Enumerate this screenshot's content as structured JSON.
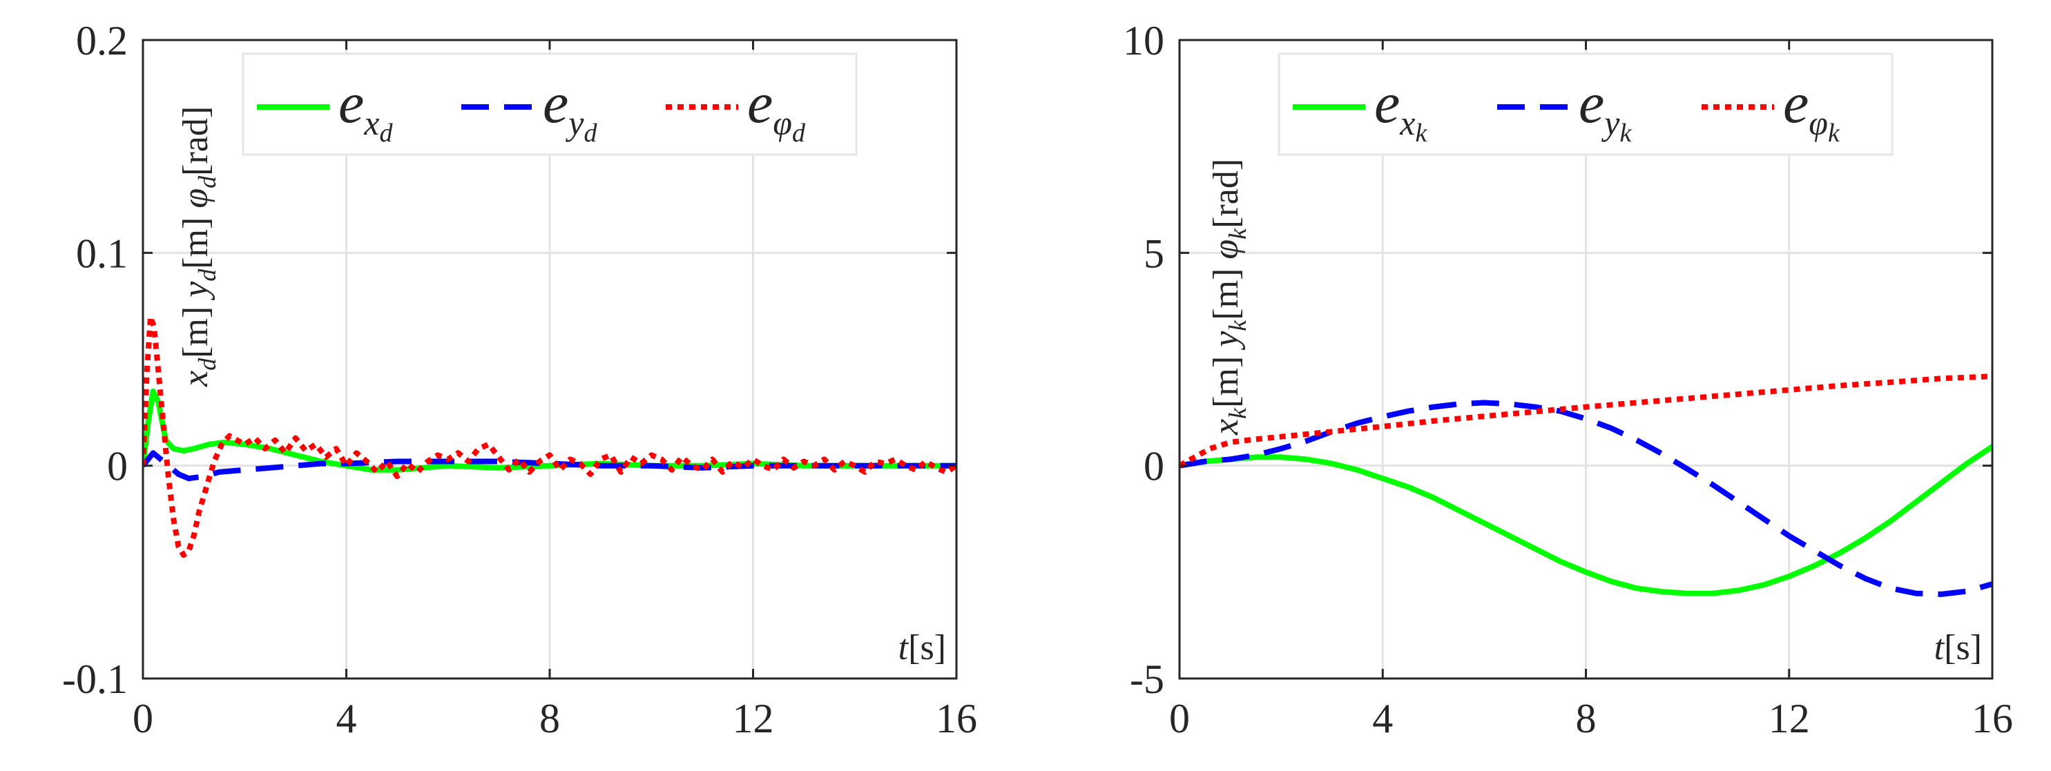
{
  "chart_data": [
    {
      "type": "line",
      "panel": "left",
      "x_tick_labels": [
        "0",
        "4",
        "8",
        "12",
        "16"
      ],
      "y_tick_labels": [
        "-0.1",
        "0",
        "0.1",
        "0.2"
      ],
      "xlim": [
        0,
        16
      ],
      "ylim": [
        -0.1,
        0.2
      ],
      "xticks": [
        0,
        4,
        8,
        12,
        16
      ],
      "yticks": [
        -0.1,
        0,
        0.1,
        0.2
      ],
      "grid": true,
      "legend_position": "top",
      "xlabel": {
        "var": "t",
        "unit": "[s]"
      },
      "ylabel": {
        "parts": [
          {
            "var": "x",
            "sub": "d",
            "unit": "[m]"
          },
          {
            "var": "y",
            "sub": "d",
            "unit": "[m]"
          },
          {
            "var": "φ",
            "sub": "d",
            "unit": "[rad]"
          }
        ]
      },
      "series": [
        {
          "name": "e_xd",
          "legend": {
            "base": "e",
            "sub": "x",
            "subsub": "d"
          },
          "color": "#00ff00",
          "style": "solid",
          "x": [
            0,
            0.1,
            0.2,
            0.3,
            0.45,
            0.6,
            0.8,
            1.0,
            1.3,
            1.6,
            2.0,
            2.5,
            3.0,
            3.5,
            4.0,
            4.5,
            5.0,
            5.5,
            6.0,
            7.0,
            8.0,
            9.0,
            10.0,
            11.0,
            12.0,
            13.0,
            14.0,
            15.0,
            16.0
          ],
          "y": [
            0,
            0.02,
            0.035,
            0.03,
            0.012,
            0.008,
            0.007,
            0.008,
            0.01,
            0.011,
            0.01,
            0.008,
            0.005,
            0.002,
            0,
            -0.002,
            -0.002,
            -0.001,
            0,
            -0.001,
            0,
            0.001,
            0,
            0,
            0.001,
            0,
            0,
            0,
            0
          ]
        },
        {
          "name": "e_yd",
          "legend": {
            "base": "e",
            "sub": "y",
            "subsub": "d"
          },
          "color": "#0000ff",
          "style": "dashed",
          "x": [
            0,
            0.2,
            0.35,
            0.5,
            0.7,
            0.9,
            1.2,
            1.5,
            2.0,
            2.5,
            3.0,
            3.5,
            4.0,
            5.0,
            6.0,
            7.0,
            8.0,
            9.0,
            10.0,
            11.0,
            12.0,
            13.0,
            14.0,
            15.0,
            16.0
          ],
          "y": [
            0,
            0.006,
            0.003,
            0.0,
            -0.004,
            -0.006,
            -0.005,
            -0.003,
            -0.002,
            -0.001,
            0,
            0.001,
            0.001,
            0.002,
            0.002,
            0.002,
            0.001,
            0,
            0,
            -0.001,
            0,
            0,
            0,
            0,
            0
          ]
        },
        {
          "name": "e_φd",
          "legend": {
            "base": "e",
            "sub": "φ",
            "subsub": "d"
          },
          "color": "#ff0000",
          "style": "dotted",
          "x": [
            0,
            0.08,
            0.15,
            0.22,
            0.3,
            0.4,
            0.5,
            0.6,
            0.7,
            0.8,
            0.9,
            1.0,
            1.1,
            1.25,
            1.4,
            1.55,
            1.7,
            1.85,
            2.0,
            2.2,
            2.4,
            2.6,
            2.8,
            3.0,
            3.2,
            3.4,
            3.6,
            3.8,
            4.0,
            4.2,
            4.4,
            4.6,
            4.8,
            5.0,
            5.2,
            5.4,
            5.6,
            5.8,
            6.0,
            6.2,
            6.4,
            6.6,
            6.8,
            7.0,
            7.2,
            7.4,
            7.6,
            7.8,
            8.0,
            8.2,
            8.4,
            8.6,
            8.8,
            9.0,
            9.2,
            9.4,
            9.6,
            9.8,
            10.0,
            10.2,
            10.4,
            10.6,
            10.8,
            11.0,
            11.2,
            11.4,
            11.6,
            11.8,
            12.0,
            12.2,
            12.4,
            12.6,
            12.8,
            13.0,
            13.2,
            13.4,
            13.6,
            13.8,
            14.0,
            14.2,
            14.4,
            14.6,
            14.8,
            15.0,
            15.2,
            15.4,
            15.6,
            15.8,
            16.0
          ],
          "y": [
            0,
            0.045,
            0.07,
            0.065,
            0.045,
            0.02,
            -0.005,
            -0.025,
            -0.038,
            -0.042,
            -0.04,
            -0.033,
            -0.022,
            -0.01,
            0.002,
            0.01,
            0.014,
            0.012,
            0.01,
            0.013,
            0.008,
            0.012,
            0.006,
            0.013,
            0.007,
            0.01,
            0.004,
            0.008,
            0.0,
            0.006,
            0.002,
            -0.003,
            0.002,
            -0.005,
            0.001,
            -0.003,
            0.002,
            0.005,
            0.003,
            0.006,
            0.002,
            0.008,
            0.01,
            0.004,
            -0.002,
            0.003,
            -0.003,
            0.002,
            0.005,
            -0.002,
            0.003,
            0.001,
            -0.004,
            0.003,
            0.005,
            -0.003,
            0.004,
            0.001,
            0.005,
            0.003,
            -0.002,
            0.004,
            0.0,
            -0.002,
            0.003,
            -0.003,
            0.002,
            -0.001,
            0.003,
            0.0,
            -0.002,
            0.003,
            -0.001,
            0.002,
            0.0,
            0.003,
            -0.002,
            0.002,
            0.0,
            -0.003,
            0.002,
            0.001,
            0.003,
            0.0,
            -0.002,
            0.002,
            -0.001,
            -0.003,
            0.0
          ]
        }
      ]
    },
    {
      "type": "line",
      "panel": "right",
      "x_tick_labels": [
        "0",
        "4",
        "8",
        "12",
        "16"
      ],
      "y_tick_labels": [
        "-5",
        "0",
        "5",
        "10"
      ],
      "xlim": [
        0,
        16
      ],
      "ylim": [
        -5,
        10
      ],
      "xticks": [
        0,
        4,
        8,
        12,
        16
      ],
      "yticks": [
        -5,
        0,
        5,
        10
      ],
      "grid": true,
      "legend_position": "top",
      "xlabel": {
        "var": "t",
        "unit": "[s]"
      },
      "ylabel": {
        "parts": [
          {
            "var": "x",
            "sub": "k",
            "unit": "[m]"
          },
          {
            "var": "y",
            "sub": "k",
            "unit": "[m]"
          },
          {
            "var": "φ",
            "sub": "k",
            "unit": "[rad]"
          }
        ]
      },
      "series": [
        {
          "name": "e_xk",
          "legend": {
            "base": "e",
            "sub": "x",
            "subsub": "k"
          },
          "color": "#00ff00",
          "style": "solid",
          "x": [
            0,
            0.5,
            1.0,
            1.5,
            2.0,
            2.5,
            3.0,
            3.5,
            4.0,
            4.5,
            5.0,
            5.5,
            6.0,
            6.5,
            7.0,
            7.5,
            8.0,
            8.5,
            9.0,
            9.5,
            10.0,
            10.5,
            11.0,
            11.5,
            12.0,
            12.5,
            13.0,
            13.5,
            14.0,
            14.5,
            15.0,
            15.5,
            16.0
          ],
          "y": [
            0,
            0.1,
            0.15,
            0.2,
            0.2,
            0.15,
            0.05,
            -0.1,
            -0.3,
            -0.5,
            -0.75,
            -1.05,
            -1.35,
            -1.65,
            -1.95,
            -2.25,
            -2.5,
            -2.72,
            -2.88,
            -2.96,
            -3.0,
            -3.0,
            -2.93,
            -2.8,
            -2.6,
            -2.35,
            -2.05,
            -1.7,
            -1.3,
            -0.85,
            -0.4,
            0.05,
            0.45
          ]
        },
        {
          "name": "e_yk",
          "legend": {
            "base": "e",
            "sub": "y",
            "subsub": "k"
          },
          "color": "#0000ff",
          "style": "dashed",
          "x": [
            0,
            0.5,
            1.0,
            1.5,
            2.0,
            2.5,
            3.0,
            3.5,
            4.0,
            4.5,
            5.0,
            5.5,
            6.0,
            6.5,
            7.0,
            7.5,
            8.0,
            8.5,
            9.0,
            9.5,
            10.0,
            10.5,
            11.0,
            11.5,
            12.0,
            12.5,
            13.0,
            13.5,
            14.0,
            14.5,
            15.0,
            15.5,
            16.0
          ],
          "y": [
            0,
            0.1,
            0.15,
            0.25,
            0.4,
            0.58,
            0.8,
            1.0,
            1.15,
            1.28,
            1.38,
            1.45,
            1.48,
            1.45,
            1.38,
            1.28,
            1.1,
            0.88,
            0.6,
            0.28,
            -0.08,
            -0.45,
            -0.85,
            -1.25,
            -1.65,
            -2.0,
            -2.35,
            -2.65,
            -2.88,
            -3.0,
            -3.02,
            -2.95,
            -2.78
          ]
        },
        {
          "name": "e_φk",
          "legend": {
            "base": "e",
            "sub": "φ",
            "subsub": "k"
          },
          "color": "#ff0000",
          "style": "dotted",
          "x": [
            0,
            0.3,
            0.6,
            1.0,
            1.5,
            2.0,
            3.0,
            4.0,
            5.0,
            6.0,
            7.0,
            8.0,
            9.0,
            10.0,
            11.0,
            12.0,
            13.0,
            14.0,
            15.0,
            16.0
          ],
          "y": [
            0,
            0.2,
            0.4,
            0.55,
            0.62,
            0.68,
            0.8,
            0.92,
            1.05,
            1.16,
            1.27,
            1.38,
            1.48,
            1.58,
            1.68,
            1.78,
            1.88,
            1.96,
            2.05,
            2.1
          ]
        }
      ]
    }
  ]
}
